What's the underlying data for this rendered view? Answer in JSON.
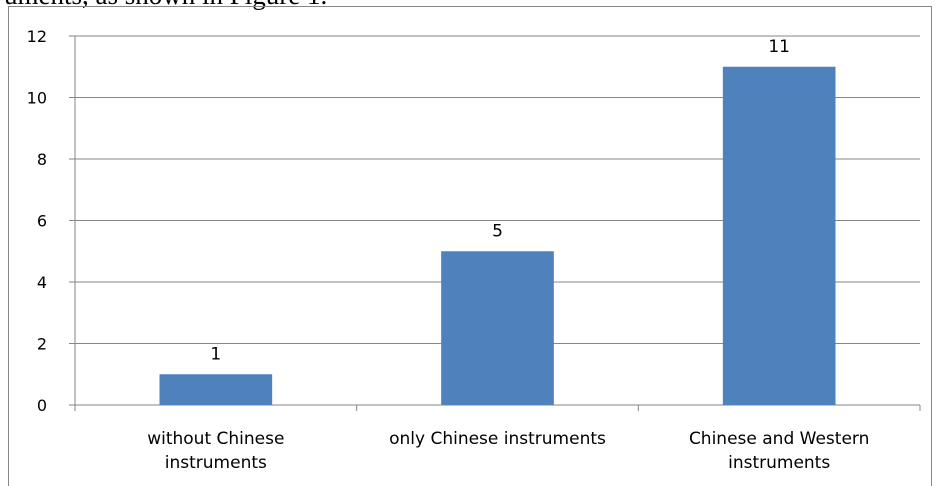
{
  "caption_fragment": "uments, as shown in Figure 1.",
  "chart_data": {
    "type": "bar",
    "categories": [
      [
        "without Chinese",
        "instruments"
      ],
      [
        "only Chinese instruments"
      ],
      [
        "Chinese and Western",
        "instruments"
      ]
    ],
    "values": [
      1,
      5,
      11
    ],
    "data_labels": [
      "1",
      "5",
      "11"
    ],
    "yticks": [
      "0",
      "2",
      "4",
      "6",
      "8",
      "10",
      "12"
    ],
    "ylim": [
      0,
      12
    ],
    "grid": true,
    "bar_color": "#4F81BD",
    "grid_color": "#868686"
  }
}
